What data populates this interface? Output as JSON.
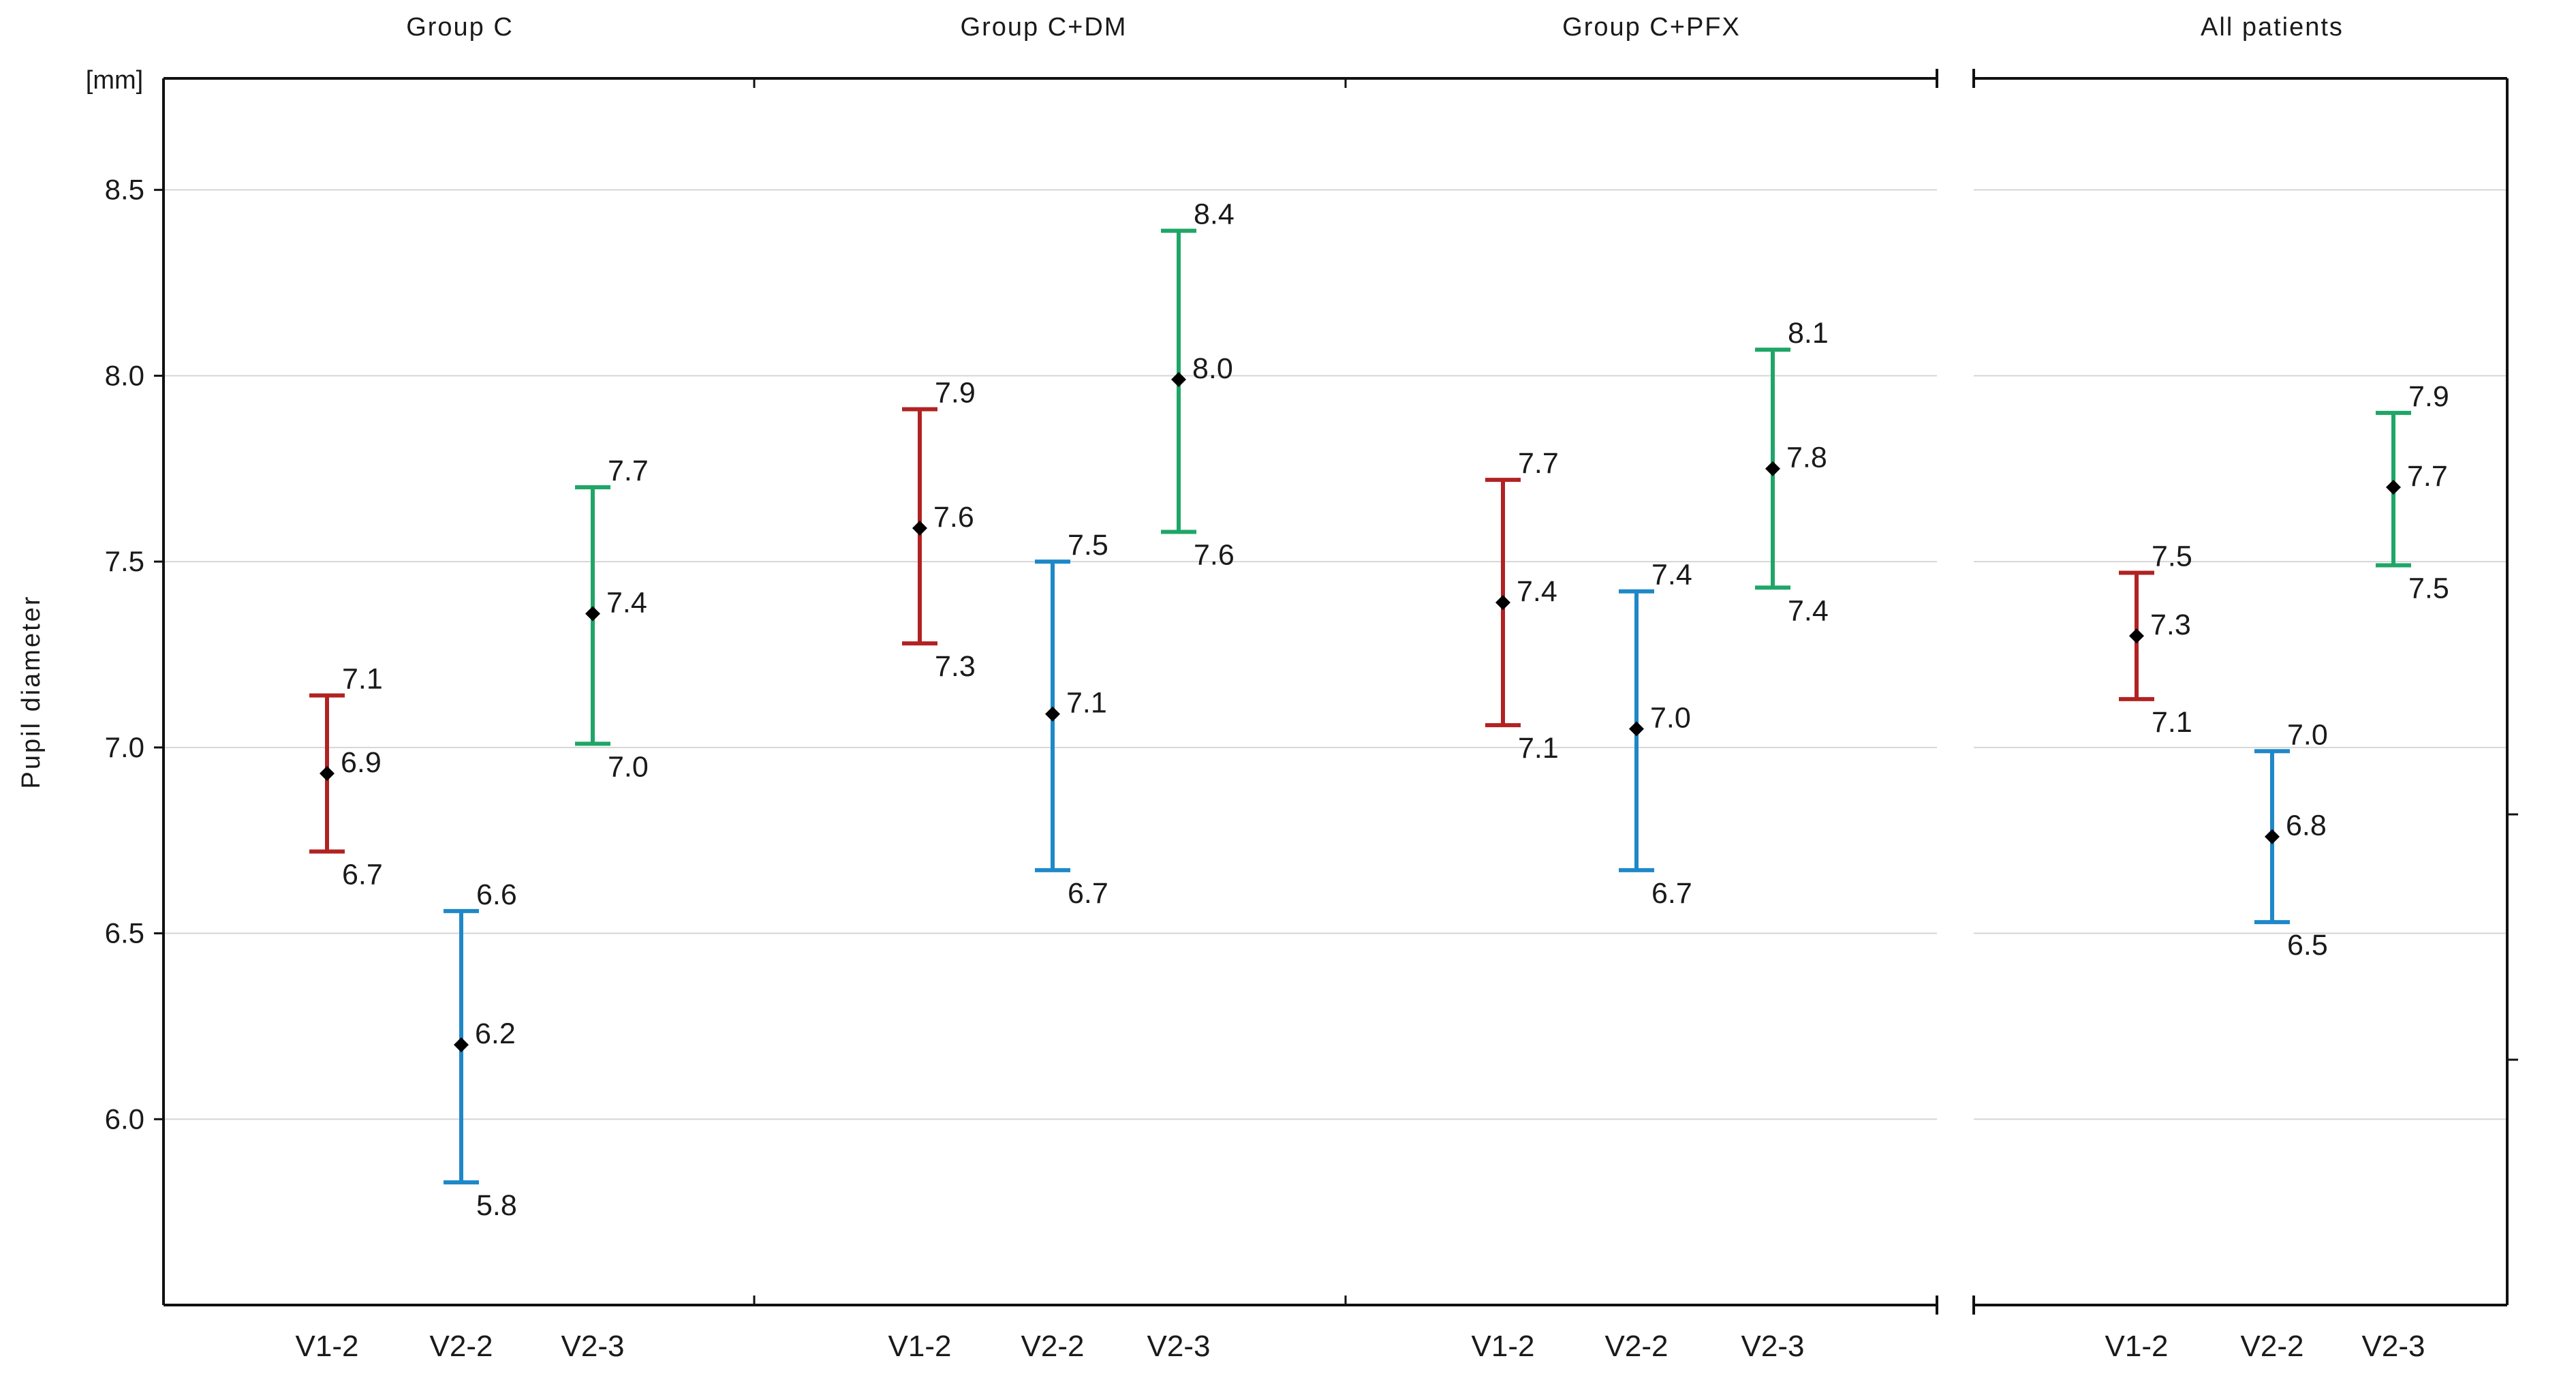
{
  "chart_data": {
    "type": "errorbar",
    "ylabel": "Pupil diameter",
    "unit": "[mm]",
    "ylim": [
      5.5,
      8.8
    ],
    "yticks": [
      "6.0",
      "6.5",
      "7.0",
      "7.5",
      "8.0",
      "8.5"
    ],
    "grid": true,
    "colors": {
      "V1-2": "#b22222",
      "V2-2": "#1e88c8",
      "V2-3": "#1fa667",
      "marker": "#000000"
    },
    "panels": [
      {
        "title": "Group C",
        "categories": [
          "V1-2",
          "V2-2",
          "V2-3"
        ],
        "mean": [
          6.93,
          6.2,
          7.36
        ],
        "lower": [
          6.72,
          5.83,
          7.01
        ],
        "upper": [
          7.14,
          6.56,
          7.7
        ],
        "mean_label": [
          "6.9",
          "6.2",
          "7.4"
        ],
        "lower_label": [
          "6.7",
          "5.8",
          "7.0"
        ],
        "upper_label": [
          "7.1",
          "6.6",
          "7.7"
        ]
      },
      {
        "title": "Group C+DM",
        "categories": [
          "V1-2",
          "V2-2",
          "V2-3"
        ],
        "mean": [
          7.59,
          7.09,
          7.99
        ],
        "lower": [
          7.28,
          6.67,
          7.58
        ],
        "upper": [
          7.91,
          7.5,
          8.39
        ],
        "mean_label": [
          "7.6",
          "7.1",
          "8.0"
        ],
        "lower_label": [
          "7.3",
          "6.7",
          "7.6"
        ],
        "upper_label": [
          "7.9",
          "7.5",
          "8.4"
        ]
      },
      {
        "title": "Group C+PFX",
        "categories": [
          "V1-2",
          "V2-2",
          "V2-3"
        ],
        "mean": [
          7.39,
          7.05,
          7.75
        ],
        "lower": [
          7.06,
          6.67,
          7.43
        ],
        "upper": [
          7.72,
          7.42,
          8.07
        ],
        "mean_label": [
          "7.4",
          "7.0",
          "7.8"
        ],
        "lower_label": [
          "7.1",
          "6.7",
          "7.4"
        ],
        "upper_label": [
          "7.7",
          "7.4",
          "8.1"
        ]
      },
      {
        "title": "All patients",
        "categories": [
          "V1-2",
          "V2-2",
          "V2-3"
        ],
        "mean": [
          7.3,
          6.76,
          7.7
        ],
        "lower": [
          7.13,
          6.53,
          7.49
        ],
        "upper": [
          7.47,
          6.99,
          7.9
        ],
        "mean_label": [
          "7.3",
          "6.8",
          "7.7"
        ],
        "lower_label": [
          "7.1",
          "6.5",
          "7.5"
        ],
        "upper_label": [
          "7.5",
          "7.0",
          "7.9"
        ]
      }
    ]
  }
}
